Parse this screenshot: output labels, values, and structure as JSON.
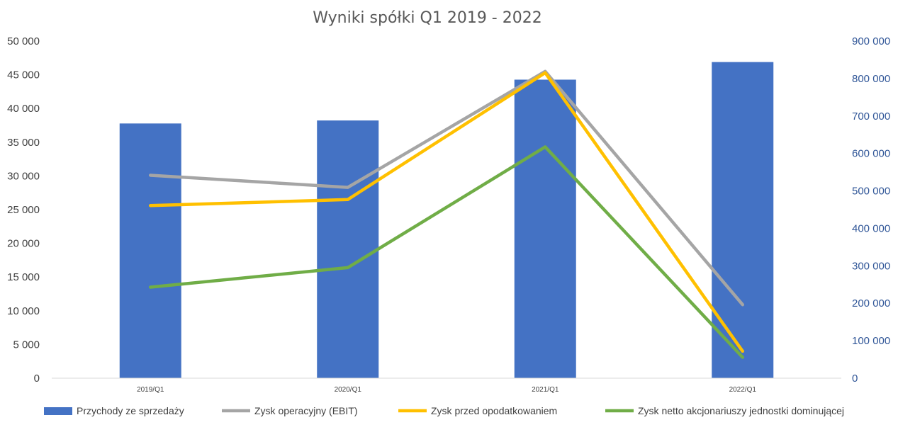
{
  "chart_data": {
    "type": "bar+line",
    "title": "Wyniki spółki Q1 2019 - 2022",
    "categories": [
      "2019/Q1",
      "2020/Q1",
      "2021/Q1",
      "2022/Q1"
    ],
    "left_axis": {
      "min": 0,
      "max": 50000,
      "ticks": [
        0,
        5000,
        10000,
        15000,
        20000,
        25000,
        30000,
        35000,
        40000,
        45000,
        50000
      ],
      "tick_labels": [
        "0",
        "5 000",
        "10 000",
        "15 000",
        "20 000",
        "25 000",
        "30 000",
        "35 000",
        "40 000",
        "45 000",
        "50 000"
      ]
    },
    "right_axis": {
      "min": 0,
      "max": 900000,
      "ticks": [
        0,
        100000,
        200000,
        300000,
        400000,
        500000,
        600000,
        700000,
        800000,
        900000
      ],
      "tick_labels": [
        "0",
        "100 000",
        "200 000",
        "300 000",
        "400 000",
        "500 000",
        "600 000",
        "700 000",
        "800 000",
        "900 000"
      ]
    },
    "series": [
      {
        "name": "Przychody ze sprzedaży",
        "type": "bar",
        "axis": "right",
        "color": "#4472C4",
        "values": [
          680000,
          688000,
          797000,
          844000
        ]
      },
      {
        "name": "Zysk operacyjny (EBIT)",
        "type": "line",
        "axis": "left",
        "color": "#A5A5A5",
        "values": [
          30100,
          28300,
          45500,
          10900
        ]
      },
      {
        "name": "Zysk przed opodatkowaniem",
        "type": "line",
        "axis": "left",
        "color": "#FFC000",
        "values": [
          25600,
          26500,
          45300,
          4000
        ]
      },
      {
        "name": "Zysk netto akcjonariuszy jednostki dominującej",
        "type": "line",
        "axis": "left",
        "color": "#70AD47",
        "values": [
          13500,
          16400,
          34300,
          3100
        ]
      }
    ],
    "grid": false,
    "legend_position": "bottom"
  }
}
